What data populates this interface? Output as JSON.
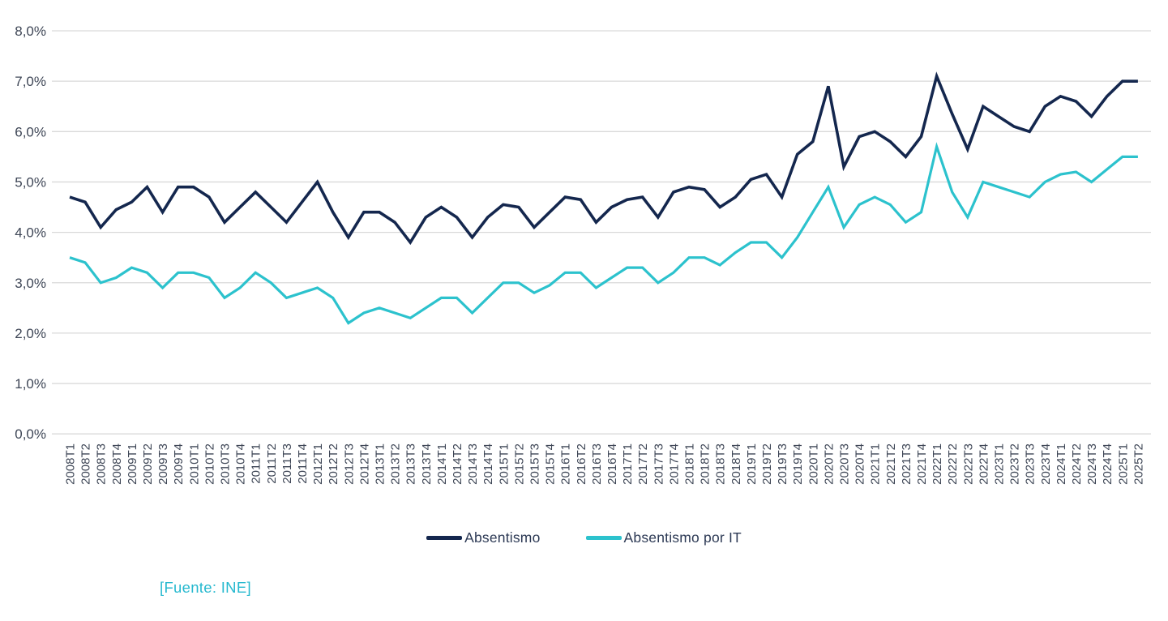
{
  "chart_data": {
    "type": "line",
    "title": "",
    "xlabel": "",
    "ylabel": "",
    "ylim": [
      0,
      8
    ],
    "y_tick_labels": [
      "0,0%",
      "1,0%",
      "2,0%",
      "3,0%",
      "4,0%",
      "5,0%",
      "6,0%",
      "7,0%",
      "8,0%"
    ],
    "grid": "horizontal",
    "grid_color": "#d9d9d9",
    "tick_text_color": "#3e4656",
    "legend_position": "bottom-center",
    "source": "[Fuente: INE]",
    "source_color": "#27b9cf",
    "categories": [
      "2008T1",
      "2008T2",
      "2008T3",
      "2008T4",
      "2009T1",
      "2009T2",
      "2009T3",
      "2009T4",
      "2010T1",
      "2010T2",
      "2010T3",
      "2010T4",
      "2011T1",
      "2011T2",
      "2011T3",
      "2011T4",
      "2012T1",
      "2012T2",
      "2012T3",
      "2012T4",
      "2013T1",
      "2013T2",
      "2013T3",
      "2013T4",
      "2014T1",
      "2014T2",
      "2014T3",
      "2014T4",
      "2015T1",
      "2015T2",
      "2015T3",
      "2015T4",
      "2016T1",
      "2016T2",
      "2016T3",
      "2016T4",
      "2017T1",
      "2017T2",
      "2017T3",
      "2017T4",
      "2018T1",
      "2018T2",
      "2018T3",
      "2018T4",
      "2019T1",
      "2019T2",
      "2019T3",
      "2019T4",
      "2020T1",
      "2020T2",
      "2020T3",
      "2020T4",
      "2021T1",
      "2021T2",
      "2021T3",
      "2021T4",
      "2022T1",
      "2022T2",
      "2022T3",
      "2022T4",
      "2023T1",
      "2023T2",
      "2023T3",
      "2023T4",
      "2024T1",
      "2024T2",
      "2024T3",
      "2024T4",
      "2025T1",
      "2025T2"
    ],
    "series": [
      {
        "name": "Absentismo",
        "color": "#14274e",
        "stroke_width": 3.6,
        "values": [
          4.7,
          4.6,
          4.1,
          4.45,
          4.6,
          4.9,
          4.4,
          4.9,
          4.9,
          4.7,
          4.2,
          4.5,
          4.8,
          4.5,
          4.2,
          4.6,
          5.0,
          4.4,
          3.9,
          4.4,
          4.4,
          4.2,
          3.8,
          4.3,
          4.5,
          4.3,
          3.9,
          4.3,
          4.55,
          4.5,
          4.1,
          4.4,
          4.7,
          4.65,
          4.2,
          4.5,
          4.65,
          4.7,
          4.3,
          4.8,
          4.9,
          4.85,
          4.5,
          4.7,
          5.05,
          5.15,
          4.7,
          5.55,
          5.8,
          6.9,
          5.3,
          5.9,
          6.0,
          5.8,
          5.5,
          5.9,
          7.1,
          6.35,
          5.65,
          6.5,
          6.3,
          6.1,
          6.0,
          6.5,
          6.7,
          6.6,
          6.3,
          6.7,
          7.0,
          7.0
        ]
      },
      {
        "name": "Absentismo por IT",
        "color": "#2cc2cd",
        "stroke_width": 3.2,
        "values": [
          3.5,
          3.4,
          3.0,
          3.1,
          3.3,
          3.2,
          2.9,
          3.2,
          3.2,
          3.1,
          2.7,
          2.9,
          3.2,
          3.0,
          2.7,
          2.8,
          2.9,
          2.7,
          2.2,
          2.4,
          2.5,
          2.4,
          2.3,
          2.5,
          2.7,
          2.7,
          2.4,
          2.7,
          3.0,
          3.0,
          2.8,
          2.95,
          3.2,
          3.2,
          2.9,
          3.1,
          3.3,
          3.3,
          3.0,
          3.2,
          3.5,
          3.5,
          3.35,
          3.6,
          3.8,
          3.8,
          3.5,
          3.9,
          4.4,
          4.9,
          4.1,
          4.55,
          4.7,
          4.55,
          4.2,
          4.4,
          5.7,
          4.8,
          4.3,
          5.0,
          4.9,
          4.8,
          4.7,
          5.0,
          5.15,
          5.2,
          5.0,
          5.25,
          5.5,
          5.5
        ]
      }
    ]
  }
}
